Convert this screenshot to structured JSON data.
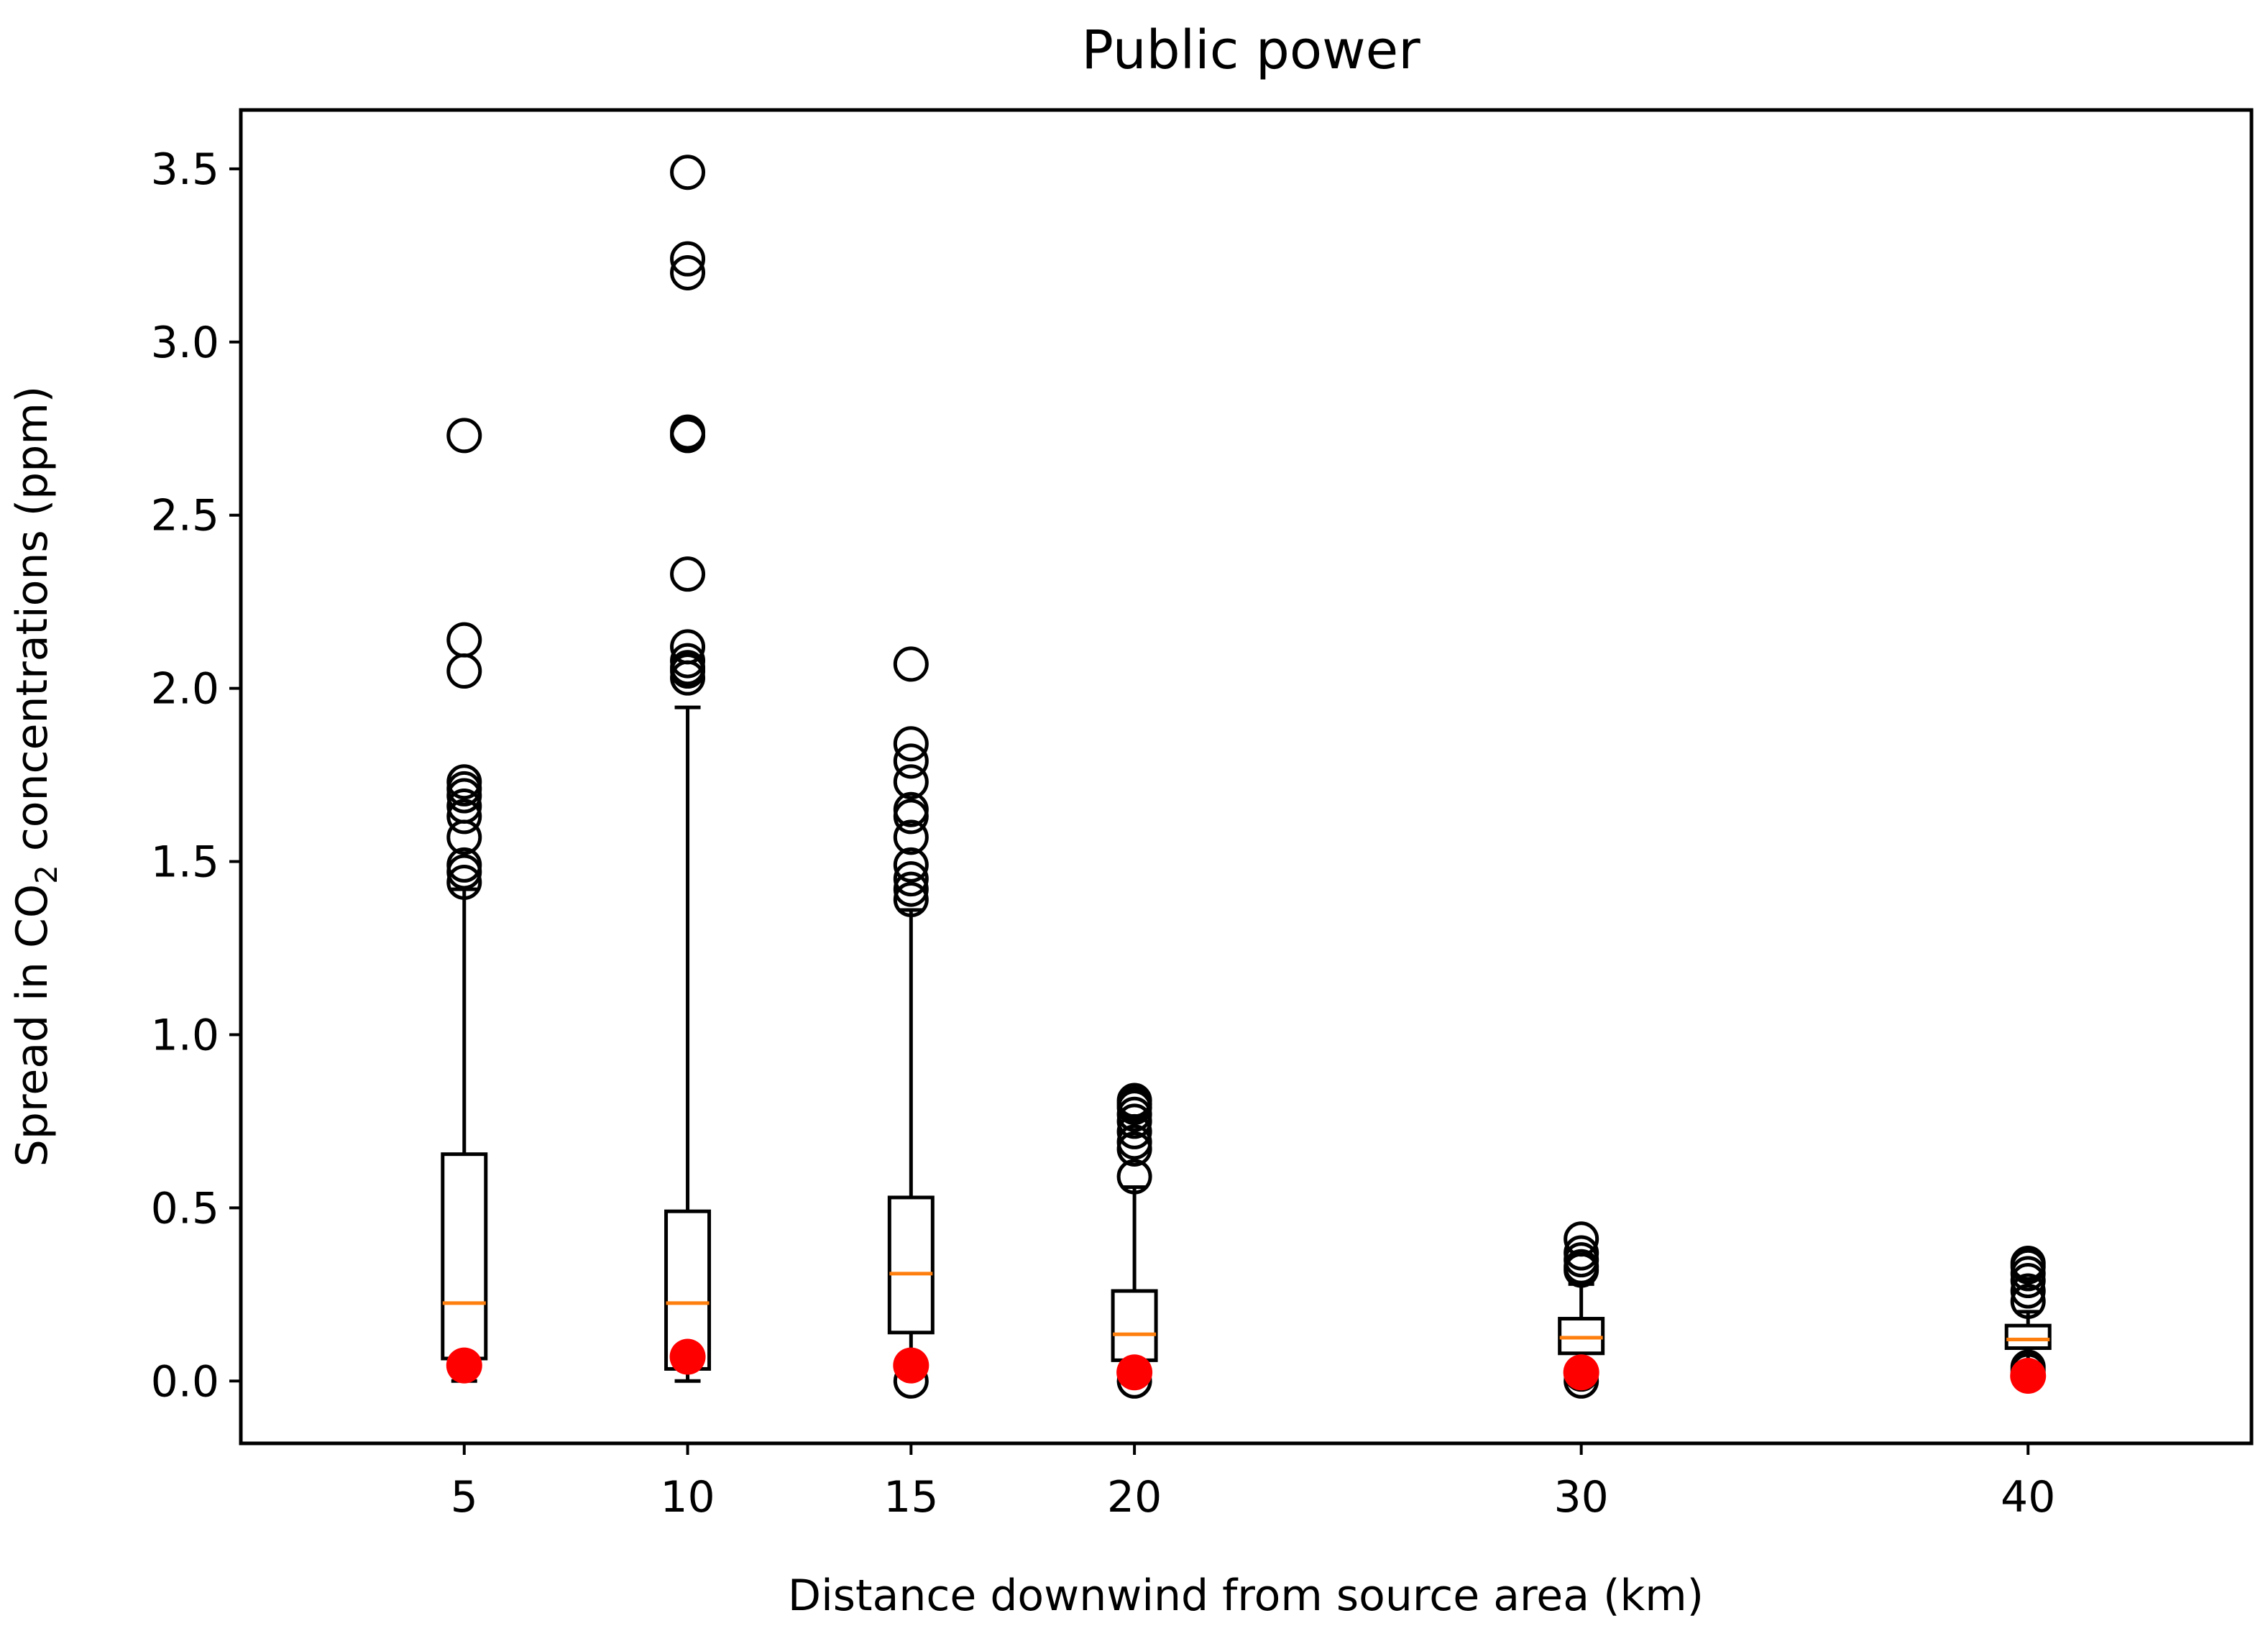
{
  "chart_data": {
    "type": "box",
    "title": "Public power",
    "xlabel": "Distance downwind from source area (km)",
    "ylabel": {
      "prefix": "Spread in CO",
      "subscript": "2",
      "suffix": " concentrations (ppm)"
    },
    "xlim": [
      0,
      45
    ],
    "ylim": [
      -0.18,
      3.67
    ],
    "x_ticks": [
      5,
      10,
      15,
      20,
      30,
      40
    ],
    "x_tick_labels": [
      "5",
      "10",
      "15",
      "20",
      "30",
      "40"
    ],
    "y_ticks": [
      0.0,
      0.5,
      1.0,
      1.5,
      2.0,
      2.5,
      3.0,
      3.5
    ],
    "y_tick_labels": [
      "0.0",
      "0.5",
      "1.0",
      "1.5",
      "2.0",
      "2.5",
      "3.0",
      "3.5"
    ],
    "grid": false,
    "colors": {
      "box": "#000000",
      "median": "#ff7f0e",
      "outlier": "#000000",
      "marker": "#ff0000"
    },
    "boxes": [
      {
        "x": 5,
        "whisker_low": 0.0,
        "q1": 0.065,
        "median": 0.225,
        "q3": 0.655,
        "whisker_high": 1.42,
        "outliers": [
          1.44,
          1.47,
          1.49,
          1.57,
          1.63,
          1.66,
          1.69,
          1.71,
          1.73,
          2.05,
          2.14,
          2.73
        ],
        "marker": 0.045
      },
      {
        "x": 10,
        "whisker_low": 0.0,
        "q1": 0.035,
        "median": 0.225,
        "q3": 0.49,
        "whisker_high": 1.945,
        "outliers": [
          2.03,
          2.05,
          2.06,
          2.08,
          2.12,
          2.33,
          2.73,
          2.74,
          3.2,
          3.24,
          3.49
        ],
        "marker": 0.07
      },
      {
        "x": 15,
        "whisker_low": 0.03,
        "q1": 0.14,
        "median": 0.31,
        "q3": 0.53,
        "whisker_high": 1.36,
        "outliers": [
          0.0,
          1.39,
          1.42,
          1.45,
          1.49,
          1.57,
          1.63,
          1.65,
          1.73,
          1.79,
          1.84,
          2.07
        ],
        "marker": 0.045
      },
      {
        "x": 20,
        "whisker_low": 0.005,
        "q1": 0.06,
        "median": 0.135,
        "q3": 0.26,
        "whisker_high": 0.56,
        "outliers": [
          0.0,
          0.59,
          0.67,
          0.69,
          0.72,
          0.75,
          0.77,
          0.79,
          0.8,
          0.81
        ],
        "marker": 0.025
      },
      {
        "x": 30,
        "whisker_low": 0.005,
        "q1": 0.08,
        "median": 0.125,
        "q3": 0.18,
        "whisker_high": 0.28,
        "outliers": [
          0.0,
          0.02,
          0.32,
          0.33,
          0.35,
          0.37,
          0.41
        ],
        "marker": 0.025
      },
      {
        "x": 40,
        "whisker_low": 0.05,
        "q1": 0.095,
        "median": 0.12,
        "q3": 0.16,
        "whisker_high": 0.2,
        "outliers": [
          0.03,
          0.04,
          0.23,
          0.26,
          0.29,
          0.31,
          0.33,
          0.34
        ],
        "marker": 0.015
      }
    ]
  }
}
